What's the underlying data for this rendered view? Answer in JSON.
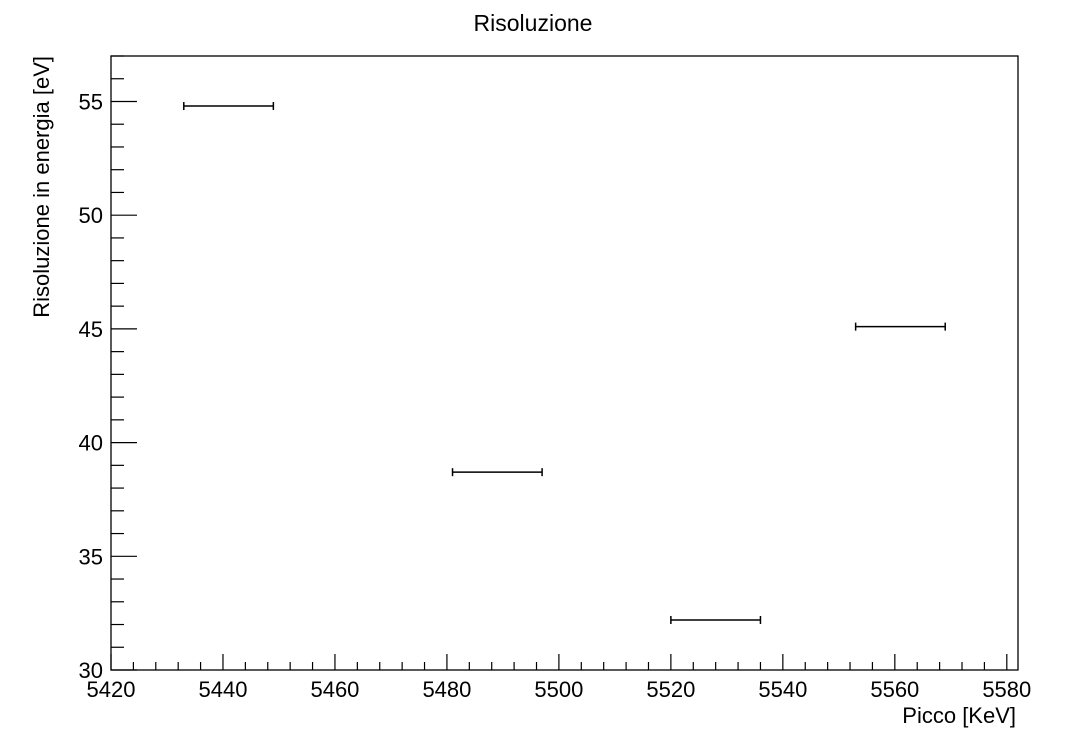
{
  "chart_data": {
    "type": "scatter",
    "title": "Risoluzione",
    "xlabel": "Picco [KeV]",
    "ylabel": "Risoluzione in energia [eV]",
    "xlim": [
      5420,
      5582
    ],
    "ylim": [
      30,
      57
    ],
    "xticks": [
      "5420",
      "5440",
      "5460",
      "5480",
      "5500",
      "5520",
      "5540",
      "5560",
      "5580"
    ],
    "yticks": [
      "30",
      "35",
      "40",
      "45",
      "50",
      "55"
    ],
    "grid": false,
    "points": [
      {
        "x": 5441,
        "y": 54.8,
        "xerr": 8
      },
      {
        "x": 5489,
        "y": 38.7,
        "xerr": 8
      },
      {
        "x": 5528,
        "y": 32.2,
        "xerr": 8
      },
      {
        "x": 5561,
        "y": 45.1,
        "xerr": 8
      }
    ]
  }
}
